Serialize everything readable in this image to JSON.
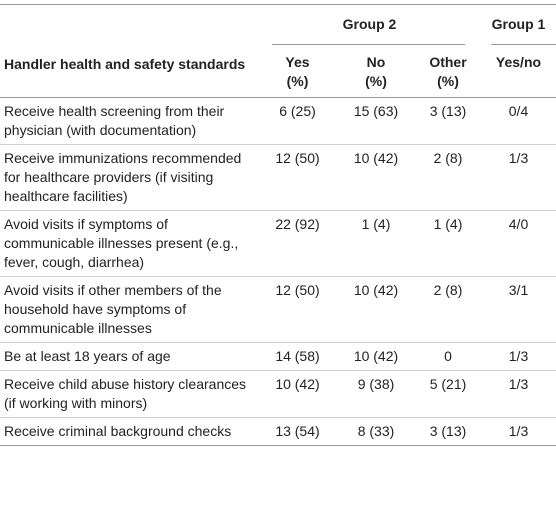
{
  "table": {
    "group_headers": {
      "group2": "Group 2",
      "group1": "Group 1"
    },
    "column_headers": {
      "item": "Handler health and safety standards",
      "yes_line1": "Yes",
      "yes_line2": "(%)",
      "no_line1": "No",
      "no_line2": "(%)",
      "other_line1": "Other",
      "other_line2": "(%)",
      "yesno": "Yes/no"
    },
    "rows": [
      {
        "item": "Receive health screening from their physician (with documentation)",
        "yes": "6 (25)",
        "no": "15 (63)",
        "other": "3 (13)",
        "yesno": "0/4"
      },
      {
        "item": "Receive immunizations recommended for healthcare providers (if visiting healthcare facilities)",
        "yes": "12 (50)",
        "no": "10 (42)",
        "other": "2 (8)",
        "yesno": "1/3"
      },
      {
        "item": "Avoid visits if symptoms of communicable illnesses present (e.g., fever, cough, diarrhea)",
        "yes": "22 (92)",
        "no": "1 (4)",
        "other": "1 (4)",
        "yesno": "4/0"
      },
      {
        "item": "Avoid visits if other members of the household have symptoms of communicable illnesses",
        "yes": "12 (50)",
        "no": "10 (42)",
        "other": "2 (8)",
        "yesno": "3/1"
      },
      {
        "item": "Be at least 18 years of age",
        "yes": "14 (58)",
        "no": "10 (42)",
        "other": "0",
        "yesno": "1/3"
      },
      {
        "item": "Receive child abuse history clearances (if working with minors)",
        "yes": "10 (42)",
        "no": "9 (38)",
        "other": "5 (21)",
        "yesno": "1/3"
      },
      {
        "item": "Receive criminal background checks",
        "yes": "13 (54)",
        "no": "8 (33)",
        "other": "3 (13)",
        "yesno": "1/3"
      }
    ]
  }
}
